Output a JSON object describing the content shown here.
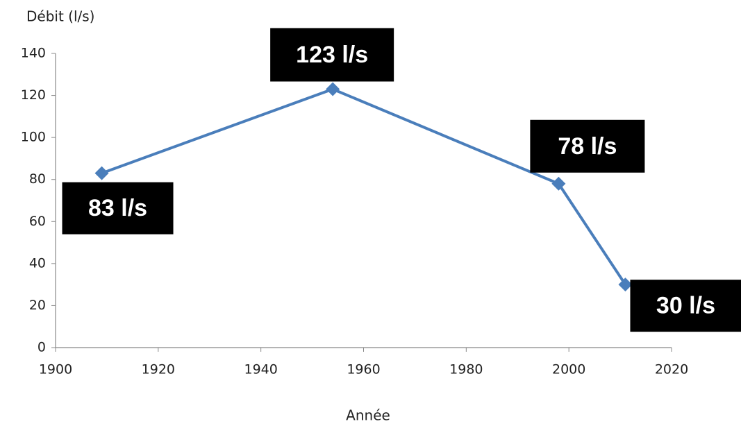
{
  "chart_data": {
    "type": "line",
    "y_label": "Débit (l/s)",
    "x_label": "Année",
    "x": [
      1909,
      1954,
      1998,
      2011
    ],
    "values": [
      83,
      123,
      78,
      30
    ],
    "value_labels": [
      "83 l/s",
      "123 l/s",
      "78 l/s",
      "30 l/s"
    ],
    "color": "#4a7ebb",
    "xlim": [
      1900,
      2020
    ],
    "xticks": [
      1900,
      1920,
      1940,
      1960,
      1980,
      2000,
      2020
    ],
    "ylim": [
      0,
      140
    ],
    "yticks": [
      0,
      20,
      40,
      60,
      80,
      100,
      120,
      140
    ],
    "grid": false
  }
}
